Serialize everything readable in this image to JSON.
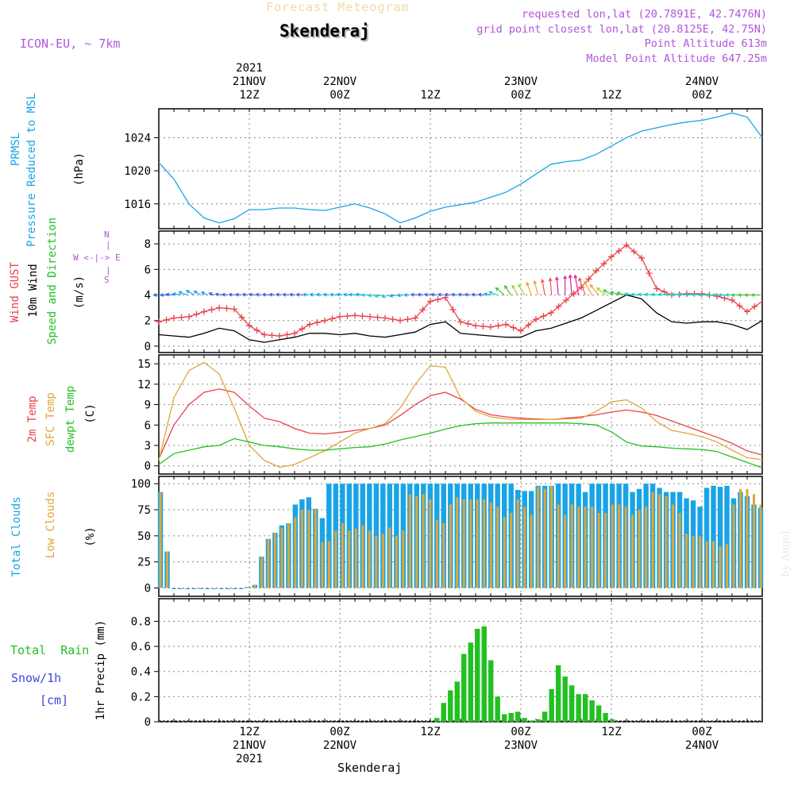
{
  "header": {
    "title": "Forecast Meteogram",
    "place": "Skenderaj",
    "model": "ICON-EU, ~ 7km",
    "info": [
      "requested lon,lat (20.7891E, 42.7476N)",
      "grid point closest lon,lat (20.8125E, 42.75N)",
      "Point Altitude 613m",
      "Model Point Altitude 647.25m"
    ],
    "credit": "by Angel",
    "footer_place": "Skenderaj"
  },
  "time_axis": {
    "top_labels": [
      {
        "lines": [
          "2021",
          "21NOV",
          "12Z"
        ],
        "x": 12
      },
      {
        "lines": [
          "22NOV",
          "00Z"
        ],
        "x": 24
      },
      {
        "lines": [
          "12Z"
        ],
        "x": 36
      },
      {
        "lines": [
          "23NOV",
          "00Z"
        ],
        "x": 48
      },
      {
        "lines": [
          "12Z"
        ],
        "x": 60
      },
      {
        "lines": [
          "24NOV",
          "00Z"
        ],
        "x": 72
      }
    ],
    "bottom_labels": [
      {
        "lines": [
          "12Z",
          "21NOV",
          "2021"
        ],
        "x": 12
      },
      {
        "lines": [
          "00Z",
          "22NOV"
        ],
        "x": 24
      },
      {
        "lines": [
          "12Z"
        ],
        "x": 36
      },
      {
        "lines": [
          "00Z",
          "23NOV"
        ],
        "x": 48
      },
      {
        "lines": [
          "12Z"
        ],
        "x": 60
      },
      {
        "lines": [
          "00Z",
          "24NOV"
        ],
        "x": 72
      }
    ]
  },
  "panel_labels": {
    "pressure": {
      "line1": "PRMSL",
      "line2": "Pressure Reduced to MSL",
      "unit": "(hPa)"
    },
    "wind": {
      "line1": "Wind GUST",
      "line2": "10m Wind",
      "line3": "Speed and Direction",
      "unit": "(m/s)",
      "compass": "W <-|-> E",
      "compass_n": "N",
      "compass_s": "S"
    },
    "temp": {
      "line1": "2m Temp",
      "line2": "SFC Temp",
      "line3": "dewpt Temp",
      "unit": "(C)"
    },
    "clouds": {
      "line1": "Total Clouds",
      "line2": "Low Clouds",
      "unit": "(%)"
    },
    "precip": {
      "rain": "Total  Rain",
      "snow": "Snow/1h",
      "snow_unit": "[cm]",
      "unit": "1hr Precip (mm)"
    }
  },
  "chart_data": [
    {
      "type": "line",
      "name": "pressure",
      "x_unit": "forecast hours (0 = 21NOV 00Z)",
      "x": [
        0,
        2,
        4,
        6,
        8,
        10,
        12,
        14,
        16,
        18,
        20,
        22,
        24,
        26,
        28,
        30,
        32,
        34,
        36,
        38,
        40,
        42,
        44,
        46,
        48,
        50,
        52,
        54,
        56,
        58,
        60,
        62,
        64,
        66,
        68,
        70,
        72,
        74,
        76,
        78,
        80
      ],
      "y": [
        1021,
        1019,
        1016,
        1014.3,
        1013.7,
        1014.2,
        1015.3,
        1015.3,
        1015.5,
        1015.5,
        1015.3,
        1015.2,
        1015.6,
        1016,
        1015.5,
        1014.8,
        1013.7,
        1014.3,
        1015.1,
        1015.6,
        1015.9,
        1016.2,
        1016.8,
        1017.4,
        1018.4,
        1019.6,
        1020.8,
        1021.1,
        1021.3,
        1022,
        1023,
        1024,
        1024.8,
        1025.2,
        1025.6,
        1025.9,
        1026.1,
        1026.5,
        1027,
        1026.5,
        1024
      ],
      "ylim": [
        1013,
        1027.5
      ],
      "yticks": [
        1016,
        1020,
        1024
      ],
      "color": "#18a4e6"
    },
    {
      "type": "line",
      "name": "wind",
      "x": [
        0,
        2,
        4,
        6,
        8,
        10,
        12,
        14,
        16,
        18,
        20,
        22,
        24,
        26,
        28,
        30,
        32,
        34,
        36,
        38,
        40,
        42,
        44,
        46,
        48,
        50,
        52,
        54,
        56,
        58,
        60,
        62,
        64,
        66,
        68,
        70,
        72,
        74,
        76,
        78,
        80
      ],
      "series": [
        {
          "name": "Wind GUST",
          "color": "#e8434b",
          "values": [
            1.9,
            2.2,
            2.3,
            2.7,
            3,
            2.9,
            1.6,
            0.9,
            0.8,
            1,
            1.7,
            2,
            2.3,
            2.4,
            2.3,
            2.2,
            2,
            2.2,
            3.5,
            3.8,
            1.9,
            1.6,
            1.5,
            1.7,
            1.2,
            2.1,
            2.6,
            3.6,
            4.6,
            5.9,
            7,
            7.9,
            6.9,
            4.5,
            4,
            4.1,
            4.1,
            3.9,
            3.6,
            2.7,
            3.5
          ]
        },
        {
          "name": "10m Wind",
          "color": "#000000",
          "values": [
            0.9,
            0.8,
            0.7,
            1,
            1.4,
            1.2,
            0.5,
            0.3,
            0.5,
            0.7,
            1,
            1,
            0.9,
            1,
            0.8,
            0.7,
            0.9,
            1.1,
            1.7,
            1.9,
            1,
            0.9,
            0.8,
            0.7,
            0.7,
            1.2,
            1.4,
            1.8,
            2.2,
            2.8,
            3.4,
            4,
            3.7,
            2.6,
            1.9,
            1.8,
            1.9,
            1.9,
            1.7,
            1.3,
            2
          ]
        }
      ],
      "ylim": [
        -0.5,
        9
      ],
      "yticks": [
        0,
        2,
        4,
        6,
        8
      ]
    },
    {
      "type": "line",
      "name": "temperature",
      "x": [
        0,
        2,
        4,
        6,
        8,
        10,
        12,
        14,
        16,
        18,
        20,
        22,
        24,
        26,
        28,
        30,
        32,
        34,
        36,
        38,
        40,
        42,
        44,
        46,
        48,
        50,
        52,
        54,
        56,
        58,
        60,
        62,
        64,
        66,
        68,
        70,
        72,
        74,
        76,
        78,
        80
      ],
      "series": [
        {
          "name": "2m Temp",
          "color": "#e8434b",
          "values": [
            1,
            6,
            9,
            10.8,
            11.3,
            10.8,
            8.8,
            7,
            6.5,
            5.5,
            4.8,
            4.7,
            4.9,
            5.2,
            5.5,
            6,
            7.4,
            9,
            10.3,
            10.8,
            9.8,
            8.3,
            7.5,
            7.2,
            7,
            6.9,
            6.8,
            7,
            7.2,
            7.5,
            7.9,
            8.2,
            7.9,
            7.4,
            6.6,
            5.8,
            5,
            4.2,
            3.3,
            2.2,
            1.6
          ]
        },
        {
          "name": "SFC Temp",
          "color": "#e0a63a",
          "values": [
            0.8,
            10,
            14,
            15.2,
            13.5,
            8.5,
            3,
            0.8,
            -0.2,
            0.2,
            1.2,
            2.2,
            3.5,
            4.8,
            5.5,
            6.2,
            8.5,
            12,
            14.7,
            14.5,
            10,
            8,
            7.2,
            6.9,
            6.8,
            6.8,
            6.8,
            6.9,
            7,
            8,
            9.4,
            9.7,
            8.5,
            6.5,
            5.2,
            4.8,
            4.3,
            3.5,
            2.3,
            1.2,
            0.9
          ]
        },
        {
          "name": "dewpt Temp",
          "color": "#22c022",
          "values": [
            0.2,
            1.8,
            2.3,
            2.8,
            3,
            4,
            3.5,
            3,
            2.8,
            2.5,
            2.3,
            2.3,
            2.5,
            2.7,
            2.8,
            3.2,
            3.8,
            4.3,
            4.8,
            5.4,
            5.9,
            6.2,
            6.3,
            6.3,
            6.3,
            6.3,
            6.3,
            6.3,
            6.2,
            6,
            5,
            3.5,
            2.9,
            2.8,
            2.6,
            2.5,
            2.4,
            2.1,
            1.3,
            0.5,
            -0.3
          ]
        }
      ],
      "ylim": [
        -1.2,
        16.3
      ],
      "yticks": [
        0,
        3,
        6,
        9,
        12,
        15
      ]
    },
    {
      "type": "bar",
      "name": "clouds",
      "x_start": 0,
      "x_step": 1,
      "series": [
        {
          "name": "Total Clouds",
          "color": "#18a4e6",
          "values": [
            92,
            35,
            0,
            0,
            0,
            0,
            0,
            0,
            0,
            0,
            0,
            0,
            0,
            1,
            3,
            30,
            47,
            53,
            60,
            62,
            80,
            85,
            87,
            76,
            67,
            100,
            100,
            100,
            100,
            100,
            100,
            100,
            100,
            100,
            100,
            100,
            100,
            100,
            100,
            100,
            100,
            100,
            100,
            100,
            100,
            100,
            100,
            100,
            100,
            100,
            100,
            100,
            100,
            94,
            93,
            93,
            98,
            98,
            98,
            100,
            100,
            100,
            100,
            92,
            100,
            100,
            100,
            100,
            100,
            100,
            92,
            95,
            100,
            100,
            96,
            92,
            92,
            92,
            86,
            84,
            78,
            96,
            98,
            97,
            98,
            86,
            92,
            88,
            80,
            77
          ]
        },
        {
          "name": "Low Clouds",
          "color": "#e0a63a",
          "values": [
            92,
            35,
            0,
            0,
            0,
            0,
            0,
            0,
            0,
            0,
            0,
            0,
            0,
            1,
            3,
            30,
            47,
            53,
            58,
            62,
            68,
            75,
            75,
            76,
            44,
            45,
            55,
            62,
            55,
            57,
            60,
            55,
            50,
            52,
            58,
            50,
            55,
            90,
            88,
            90,
            85,
            65,
            62,
            80,
            87,
            85,
            85,
            85,
            85,
            82,
            78,
            68,
            72,
            85,
            78,
            70,
            97,
            95,
            98,
            80,
            70,
            80,
            78,
            78,
            78,
            72,
            72,
            80,
            80,
            78,
            70,
            75,
            78,
            92,
            90,
            88,
            80,
            72,
            52,
            50,
            50,
            45,
            45,
            40,
            42,
            80,
            95,
            95,
            90,
            80
          ]
        }
      ],
      "ylim": [
        -8,
        107
      ],
      "yticks": [
        0,
        25,
        50,
        75,
        100
      ]
    },
    {
      "type": "bar",
      "name": "precipitation",
      "x_start": 0,
      "x_step": 1,
      "series": [
        {
          "name": "Total Rain",
          "color": "#22c022",
          "values": [
            0,
            0,
            0,
            0,
            0,
            0,
            0,
            0,
            0,
            0,
            0,
            0,
            0,
            0,
            0,
            0,
            0,
            0,
            0,
            0,
            0,
            0,
            0,
            0,
            0,
            0,
            0,
            0,
            0,
            0,
            0,
            0,
            0,
            0,
            0,
            0,
            0,
            0,
            0,
            0,
            0,
            0.03,
            0.15,
            0.25,
            0.32,
            0.54,
            0.63,
            0.74,
            0.76,
            0.49,
            0.2,
            0.06,
            0.07,
            0.08,
            0.03,
            0.01,
            0.02,
            0.08,
            0.26,
            0.45,
            0.36,
            0.29,
            0.22,
            0.22,
            0.17,
            0.13,
            0.07,
            0.02,
            0,
            0,
            0,
            0,
            0,
            0,
            0,
            0,
            0,
            0,
            0,
            0,
            0,
            0,
            0,
            0,
            0,
            0,
            0,
            0,
            0,
            0
          ]
        }
      ],
      "ylim": [
        0,
        0.98
      ],
      "yticks": [
        0,
        0.2,
        0.4,
        0.6,
        0.8
      ]
    }
  ],
  "wind_arrows": {
    "x_start": 0,
    "x_step": 1,
    "colors_by_speed": [
      "#6b2bd9",
      "#3a63e0",
      "#18a4e6",
      "#22c9c9",
      "#44c244",
      "#a0d630",
      "#f0a030",
      "#f05050",
      "#e020a0"
    ],
    "directions_deg": [
      90,
      90,
      95,
      100,
      110,
      120,
      120,
      115,
      110,
      100,
      95,
      95,
      95,
      95,
      95,
      95,
      95,
      95,
      95,
      95,
      95,
      95,
      95,
      95,
      95,
      95,
      95,
      95,
      95,
      95,
      95,
      90,
      85,
      80,
      75,
      80,
      85,
      90,
      95,
      95,
      95,
      95,
      95,
      95,
      95,
      95,
      95,
      95,
      95,
      100,
      110,
      130,
      145,
      150,
      150,
      160,
      165,
      170,
      175,
      175,
      180,
      175,
      170,
      160,
      150,
      140,
      130,
      120,
      110,
      105,
      100,
      95,
      95,
      95,
      95,
      95,
      95,
      95,
      95,
      95,
      95,
      90,
      90,
      90,
      90,
      90,
      90,
      90,
      90,
      90
    ],
    "speed_class": [
      1,
      1,
      1,
      2,
      2,
      2,
      2,
      2,
      1,
      1,
      1,
      1,
      1,
      1,
      1,
      1,
      1,
      1,
      1,
      1,
      1,
      1,
      2,
      2,
      2,
      2,
      2,
      2,
      2,
      2,
      2,
      3,
      3,
      3,
      3,
      2,
      2,
      2,
      1,
      1,
      1,
      1,
      1,
      1,
      1,
      1,
      1,
      1,
      1,
      2,
      3,
      4,
      4,
      5,
      5,
      6,
      6,
      7,
      7,
      8,
      8,
      8,
      8,
      7,
      6,
      6,
      5,
      4,
      4,
      4,
      3,
      3,
      3,
      3,
      3,
      3,
      3,
      3,
      3,
      3,
      3,
      3,
      3,
      3,
      3,
      3,
      4,
      4,
      4,
      4
    ],
    "length_rel": [
      0.6,
      0.6,
      0.7,
      0.7,
      0.8,
      0.8,
      0.7,
      0.6,
      0.5,
      0.5,
      0.5,
      0.5,
      0.5,
      0.5,
      0.5,
      0.5,
      0.5,
      0.5,
      0.5,
      0.5,
      0.5,
      0.5,
      0.5,
      0.5,
      0.5,
      0.5,
      0.5,
      0.5,
      0.5,
      0.6,
      0.6,
      0.7,
      0.7,
      0.7,
      0.7,
      0.6,
      0.5,
      0.5,
      0.5,
      0.5,
      0.5,
      0.5,
      0.5,
      0.5,
      0.5,
      0.5,
      0.5,
      0.5,
      0.5,
      0.6,
      0.8,
      1,
      1,
      1,
      1.1,
      1.2,
      1.3,
      1.4,
      1.5,
      1.6,
      1.7,
      1.8,
      1.8,
      1.6,
      1.4,
      1.2,
      1,
      0.9,
      0.8,
      0.8,
      0.7,
      0.7,
      0.7,
      0.7,
      0.7,
      0.7,
      0.7,
      0.7,
      0.7,
      0.7,
      0.7,
      0.7,
      0.7,
      0.7,
      0.7,
      0.7,
      0.8,
      0.8,
      0.8,
      0.8
    ]
  }
}
